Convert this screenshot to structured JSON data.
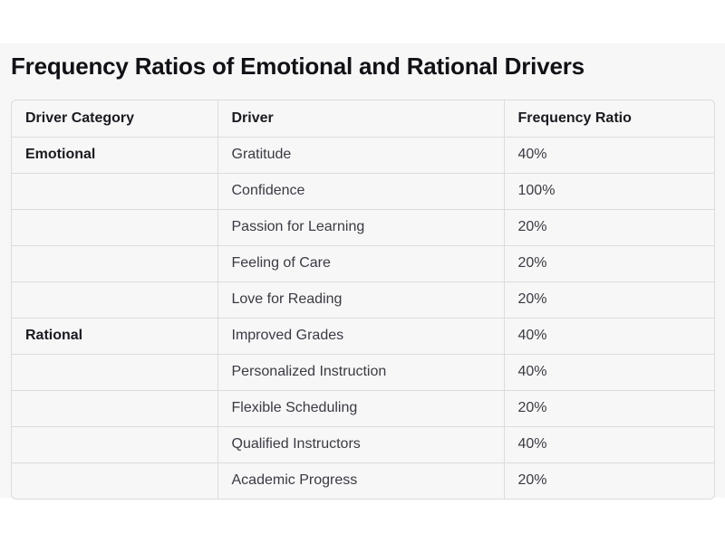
{
  "title": "Frequency Ratios of Emotional and Rational Drivers",
  "table": {
    "headers": [
      "Driver Category",
      "Driver",
      "Frequency Ratio"
    ],
    "rows": [
      {
        "category": "Emotional",
        "driver": "Gratitude",
        "ratio": "40%"
      },
      {
        "category": "",
        "driver": "Confidence",
        "ratio": "100%"
      },
      {
        "category": "",
        "driver": "Passion for Learning",
        "ratio": "20%"
      },
      {
        "category": "",
        "driver": "Feeling of Care",
        "ratio": "20%"
      },
      {
        "category": "",
        "driver": "Love for Reading",
        "ratio": "20%"
      },
      {
        "category": "Rational",
        "driver": "Improved Grades",
        "ratio": "40%"
      },
      {
        "category": "",
        "driver": "Personalized Instruction",
        "ratio": "40%"
      },
      {
        "category": "",
        "driver": "Flexible Scheduling",
        "ratio": "20%"
      },
      {
        "category": "",
        "driver": "Qualified Instructors",
        "ratio": "40%"
      },
      {
        "category": "",
        "driver": "Academic Progress",
        "ratio": "20%"
      }
    ]
  }
}
